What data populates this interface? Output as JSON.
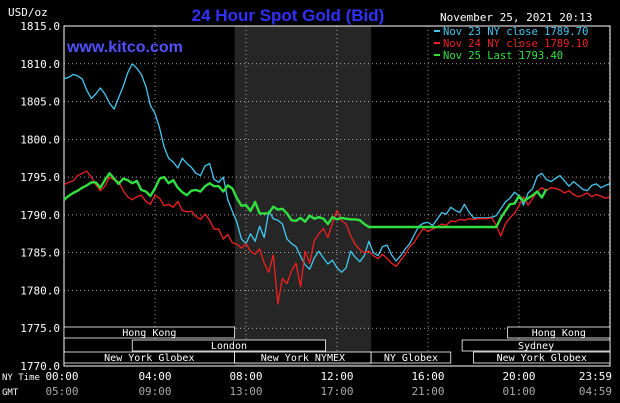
{
  "chart_data": {
    "type": "line",
    "title": "24 Hour Spot Gold (Bid)",
    "watermark": "www.kitco.com",
    "date_label": "November 25, 2021 20:13",
    "ylabel": "USD/oz",
    "ylim": [
      1770,
      1815
    ],
    "yticks": [
      "1815.0",
      "1810.0",
      "1805.0",
      "1800.0",
      "1795.0",
      "1790.0",
      "1785.0",
      "1780.0",
      "1775.0",
      "1770.0"
    ],
    "ytick_values": [
      1815,
      1810,
      1805,
      1800,
      1795,
      1790,
      1785,
      1780,
      1775,
      1770
    ],
    "xlim": [
      0,
      24
    ],
    "xticks": [
      0,
      4,
      8,
      12,
      16,
      20,
      23.983
    ],
    "xtick_ny": [
      "00:00",
      "04:00",
      "08:00",
      "12:00",
      "16:00",
      "20:00",
      "23:59"
    ],
    "xtick_gmt": [
      "05:00",
      "09:00",
      "13:00",
      "17:00",
      "21:00",
      "01:00",
      "04:59"
    ],
    "ny_time_label": "NY Time",
    "gmt_label": "GMT",
    "shaded_region": [
      7.5,
      13.5
    ],
    "grid": true,
    "colors": {
      "background": "#000000",
      "grid": "#ffffff",
      "shade": "#262626",
      "title": "#3030ff",
      "watermark": "#5050ff",
      "axis_text": "#ffffff",
      "session_bar": "#000000",
      "session_border": "#ffffff"
    },
    "legend_position": "top-right",
    "series": [
      {
        "name": "Nov 23 NY close",
        "value": "1789.70",
        "color": "#40c8f0",
        "x": [
          0,
          0.2,
          0.4,
          0.6,
          0.8,
          1.0,
          1.2,
          1.4,
          1.6,
          1.8,
          2.0,
          2.2,
          2.4,
          2.6,
          2.8,
          3.0,
          3.2,
          3.4,
          3.6,
          3.8,
          4.0,
          4.2,
          4.4,
          4.6,
          4.8,
          5.0,
          5.2,
          5.4,
          5.6,
          5.8,
          6.0,
          6.2,
          6.4,
          6.6,
          6.8,
          7.0,
          7.2,
          7.4,
          7.6,
          7.8,
          8.0,
          8.2,
          8.4,
          8.6,
          8.8,
          9.0,
          9.2,
          9.4,
          9.6,
          9.8,
          10.0,
          10.2,
          10.4,
          10.6,
          10.8,
          11.0,
          11.2,
          11.4,
          11.6,
          11.8,
          12.0,
          12.2,
          12.4,
          12.6,
          12.8,
          13.0,
          13.2,
          13.4,
          13.6,
          13.8,
          14.0,
          14.2,
          14.4,
          14.6,
          14.8,
          15.0,
          15.2,
          15.4,
          15.6,
          15.8,
          16.0,
          16.2,
          16.4,
          16.6,
          16.8,
          17.0,
          17.2,
          17.4,
          17.6,
          17.8,
          18.0,
          18.2,
          18.4,
          18.6,
          18.8,
          19.0,
          19.2,
          19.4,
          19.6,
          19.8,
          20.0,
          20.2,
          20.4,
          20.6,
          20.8,
          21.0,
          21.2,
          21.4,
          21.6,
          21.8,
          22.0,
          22.2,
          22.4,
          22.6,
          22.8,
          23.0,
          23.2,
          23.4,
          23.6,
          23.8,
          23.98
        ],
        "y": [
          1808,
          1808.2,
          1808.6,
          1808.4,
          1808,
          1806.5,
          1805.4,
          1806,
          1806.8,
          1806,
          1804.8,
          1804,
          1805.5,
          1807,
          1808.8,
          1810,
          1809.4,
          1808.6,
          1807,
          1804.5,
          1803.4,
          1801.5,
          1799,
          1797.5,
          1797,
          1796.2,
          1797.5,
          1796.8,
          1796.3,
          1795.5,
          1795.2,
          1796.5,
          1796.8,
          1794.7,
          1794.3,
          1795,
          1792,
          1790.5,
          1789,
          1786.8,
          1786.2,
          1787.5,
          1786.5,
          1788.5,
          1787,
          1790.5,
          1789.5,
          1789.3,
          1788.8,
          1786.8,
          1786.2,
          1785.8,
          1784.5,
          1783.4,
          1782.8,
          1784.3,
          1785.2,
          1784.3,
          1783.5,
          1784,
          1783,
          1782.4,
          1783,
          1785.2,
          1784.4,
          1783.8,
          1784.6,
          1786.5,
          1785,
          1784.6,
          1785.8,
          1786,
          1784.7,
          1783.9,
          1784.6,
          1785.5,
          1786.2,
          1787.4,
          1788.5,
          1788.9,
          1789,
          1788.6,
          1789.4,
          1790.3,
          1790.1,
          1791,
          1790.6,
          1790.3,
          1791.4,
          1790.4,
          1789.6,
          1789.6,
          1789.6,
          1789.6,
          1789.7,
          1789.9,
          1790.8,
          1791.7,
          1792.2,
          1793,
          1792.5,
          1791.3,
          1792.9,
          1793.5,
          1795.1,
          1795.5,
          1794.7,
          1794.4,
          1794.8,
          1795.2,
          1794.5,
          1793.8,
          1794.4,
          1793.9,
          1793.4,
          1793.2,
          1793.9,
          1794.1,
          1793.6,
          1793.9,
          1794.1
        ]
      },
      {
        "name": "Nov 24 NY close",
        "value": "1789.10",
        "color": "#f02020",
        "x": [
          0,
          0.2,
          0.4,
          0.6,
          0.8,
          1.0,
          1.2,
          1.4,
          1.6,
          1.8,
          2.0,
          2.2,
          2.4,
          2.6,
          2.8,
          3.0,
          3.2,
          3.4,
          3.6,
          3.8,
          4.0,
          4.2,
          4.4,
          4.6,
          4.8,
          5.0,
          5.2,
          5.4,
          5.6,
          5.8,
          6.0,
          6.2,
          6.4,
          6.6,
          6.8,
          7.0,
          7.2,
          7.4,
          7.6,
          7.8,
          8.0,
          8.2,
          8.4,
          8.6,
          8.8,
          9.0,
          9.2,
          9.4,
          9.6,
          9.8,
          10.0,
          10.2,
          10.4,
          10.6,
          10.8,
          11.0,
          11.2,
          11.4,
          11.6,
          11.8,
          12.0,
          12.2,
          12.4,
          12.6,
          12.8,
          13.0,
          13.2,
          13.4,
          13.6,
          13.8,
          14.0,
          14.2,
          14.4,
          14.6,
          14.8,
          15.0,
          15.2,
          15.4,
          15.6,
          15.8,
          16.0,
          16.2,
          16.4,
          16.6,
          16.8,
          17.0,
          17.2,
          17.4,
          17.6,
          17.8,
          18.0,
          18.2,
          18.4,
          18.6,
          18.8,
          19.0,
          19.2,
          19.4,
          19.6,
          19.8,
          20.0,
          20.2,
          20.4,
          20.6,
          20.8,
          21.0,
          21.2,
          21.4,
          21.6,
          21.8,
          22.0,
          22.2,
          22.4,
          22.6,
          22.8,
          23.0,
          23.2,
          23.4,
          23.6,
          23.8,
          23.98
        ],
        "y": [
          1794,
          1794.3,
          1794.5,
          1795.2,
          1795.5,
          1795.8,
          1795,
          1794,
          1793.2,
          1793.8,
          1795,
          1794.6,
          1794.4,
          1793.2,
          1792.4,
          1792,
          1792.4,
          1792.6,
          1791.8,
          1791.4,
          1792.6,
          1792.2,
          1791.2,
          1791.4,
          1791,
          1791.8,
          1790.6,
          1790.4,
          1790.5,
          1789.8,
          1789.4,
          1790.1,
          1789.3,
          1788.1,
          1788.1,
          1786.8,
          1787.4,
          1786.3,
          1786.1,
          1785.6,
          1786.2,
          1785.2,
          1784.8,
          1785.5,
          1783.6,
          1782.4,
          1784.7,
          1778.2,
          1781.6,
          1780.9,
          1782.6,
          1783.6,
          1780.5,
          1785.2,
          1783.6,
          1786.6,
          1787.5,
          1788.2,
          1787,
          1788.9,
          1790.6,
          1789.2,
          1788.8,
          1787.2,
          1786.1,
          1785.4,
          1785,
          1785.2,
          1784.6,
          1784.2,
          1784.8,
          1784.2,
          1783.6,
          1783.2,
          1784,
          1784.8,
          1785.8,
          1786.4,
          1787.4,
          1788.2,
          1787.8,
          1788.1,
          1788.4,
          1788.8,
          1788.6,
          1789.2,
          1789.1,
          1789.4,
          1789.3,
          1789.5,
          1789.4,
          1789.5,
          1789.5,
          1789.5,
          1789.6,
          1788.6,
          1787.2,
          1788.8,
          1789.6,
          1790.2,
          1791.2,
          1792.4,
          1791.3,
          1792.2,
          1793.1,
          1793.6,
          1793.2,
          1793.6,
          1793.5,
          1793.3,
          1792.9,
          1793.2,
          1792.7,
          1792.4,
          1792.6,
          1792.9,
          1792.4,
          1792.7,
          1792.5,
          1792.2,
          1792.4
        ]
      },
      {
        "name": "Nov 25 Last",
        "value": "1793.40",
        "color": "#30e040",
        "x": [
          0,
          0.2,
          0.4,
          0.6,
          0.8,
          1.0,
          1.2,
          1.4,
          1.6,
          1.8,
          2.0,
          2.2,
          2.4,
          2.6,
          2.8,
          3.0,
          3.2,
          3.4,
          3.6,
          3.8,
          4.0,
          4.2,
          4.4,
          4.6,
          4.8,
          5.0,
          5.2,
          5.4,
          5.6,
          5.8,
          6.0,
          6.2,
          6.4,
          6.6,
          6.8,
          7.0,
          7.2,
          7.4,
          7.6,
          7.8,
          8.0,
          8.2,
          8.4,
          8.6,
          8.8,
          9.0,
          9.2,
          9.4,
          9.6,
          9.8,
          10.0,
          10.2,
          10.4,
          10.6,
          10.8,
          11.0,
          11.2,
          11.4,
          11.6,
          11.8,
          12.0,
          12.2,
          12.4,
          12.6,
          12.8,
          13.0,
          13.2,
          13.4,
          13.6,
          13.8,
          14.0,
          14.2,
          14.4,
          14.6,
          14.8,
          15.0,
          15.2,
          15.4,
          15.6,
          15.8,
          16.0,
          16.2,
          16.4,
          16.6,
          16.8,
          17.0,
          17.2,
          17.4,
          17.6,
          17.8,
          18.0,
          18.2,
          18.4,
          18.6,
          18.8,
          19.0,
          19.2,
          19.4,
          19.6,
          19.8,
          20.0,
          20.2,
          20.4,
          20.6,
          20.8,
          21.0,
          21.2
        ],
        "y": [
          1792,
          1792.5,
          1792.9,
          1793.2,
          1793.6,
          1793.9,
          1794.3,
          1794.3,
          1793.6,
          1794.6,
          1795.5,
          1794.8,
          1794.1,
          1794.8,
          1794.6,
          1794.2,
          1794.5,
          1793.3,
          1793.1,
          1792.5,
          1793.5,
          1794.8,
          1795,
          1794.2,
          1794.6,
          1793.6,
          1793,
          1792.6,
          1793.2,
          1793.3,
          1793.1,
          1793.8,
          1794.2,
          1793.8,
          1793.8,
          1793.1,
          1793.9,
          1793.5,
          1792.2,
          1791.2,
          1791.3,
          1790.5,
          1791.7,
          1790.2,
          1790.2,
          1790.2,
          1791.1,
          1790.7,
          1790.8,
          1790.2,
          1789.3,
          1789.2,
          1789.6,
          1789.1,
          1789.9,
          1789.5,
          1789.7,
          1789.5,
          1788.8,
          1789.7,
          1789.4,
          1789.6,
          1789.5,
          1789.4,
          1789.4,
          1789.3,
          1788.8,
          1788.4,
          1788.4,
          1788.4,
          1788.4,
          1788.4,
          1788.4,
          1788.4,
          1788.4,
          1788.4,
          1788.4,
          1788.4,
          1788.4,
          1788.4,
          1788.4,
          1788.4,
          1788.4,
          1788.4,
          1788.4,
          1788.4,
          1788.4,
          1788.4,
          1788.4,
          1788.4,
          1788.4,
          1788.4,
          1788.4,
          1788.4,
          1788.4,
          1788.4,
          1789.6,
          1790.5,
          1791.4,
          1791.5,
          1792.5,
          1791.8,
          1792.2,
          1792.6,
          1793.1,
          1792.3,
          1793.4
        ]
      }
    ],
    "sessions": [
      {
        "name": "Hong Kong",
        "row": 0,
        "start": 0,
        "end": 7.5
      },
      {
        "name": "Hong Kong",
        "row": 0,
        "start": 19.5,
        "end": 24
      },
      {
        "name": "London",
        "row": 1,
        "start": 3,
        "end": 11.5
      },
      {
        "name": "Sydney",
        "row": 1,
        "start": 17.5,
        "end": 24
      },
      {
        "name": "New York Globex",
        "row": 2,
        "start": 0,
        "end": 7.5
      },
      {
        "name": "New York NYMEX",
        "row": 2,
        "start": 7.5,
        "end": 13.5
      },
      {
        "name": "NY Globex",
        "row": 2,
        "start": 13.5,
        "end": 17
      },
      {
        "name": "New York Globex",
        "row": 2,
        "start": 18,
        "end": 24
      }
    ]
  }
}
